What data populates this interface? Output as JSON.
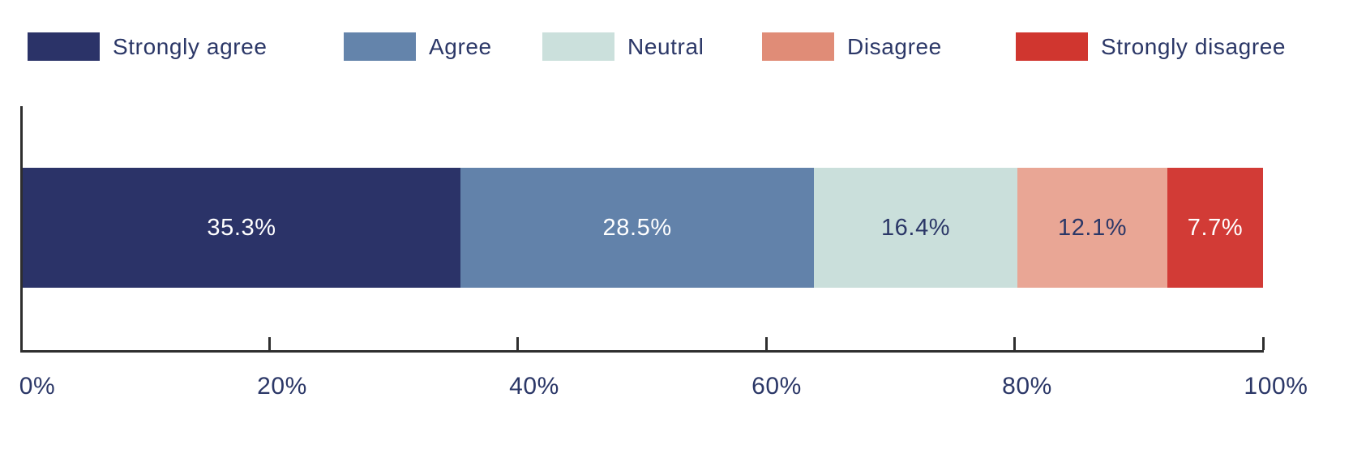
{
  "page": {
    "background": "#ffffff",
    "text_color": "#2b3767",
    "axis_color": "#2e2e2e"
  },
  "chart_data": {
    "type": "bar",
    "variant": "horizontal-stacked-single-bar",
    "title": "",
    "xlabel": "",
    "ylabel": "",
    "x_axis": {
      "range": [
        0,
        100
      ],
      "tick_labels": [
        "0%",
        "20%",
        "40%",
        "60%",
        "80%",
        "100%"
      ],
      "grid": false
    },
    "legend": {
      "position": "top"
    },
    "series": [
      {
        "name": "Strongly agree",
        "value": 35.3,
        "data_label": "35.3%",
        "bar_color": "#2b3368",
        "legend_color": "#2b3368",
        "label_color": "#ffffff"
      },
      {
        "name": "Agree",
        "value": 28.5,
        "data_label": "28.5%",
        "bar_color": "#6282aa",
        "legend_color": "#6484ab",
        "label_color": "#ffffff"
      },
      {
        "name": "Neutral",
        "value": 16.4,
        "data_label": "16.4%",
        "bar_color": "#cadfdb",
        "legend_color": "#cbe0dc",
        "label_color": "#2b3767"
      },
      {
        "name": "Disagree",
        "value": 12.1,
        "data_label": "12.1%",
        "bar_color": "#e9a695",
        "legend_color": "#e08c77",
        "label_color": "#2b3767"
      },
      {
        "name": "Strongly disagree",
        "value": 7.7,
        "data_label": "7.7%",
        "bar_color": "#d23b36",
        "legend_color": "#d0362f",
        "label_color": "#ffffff"
      }
    ]
  }
}
